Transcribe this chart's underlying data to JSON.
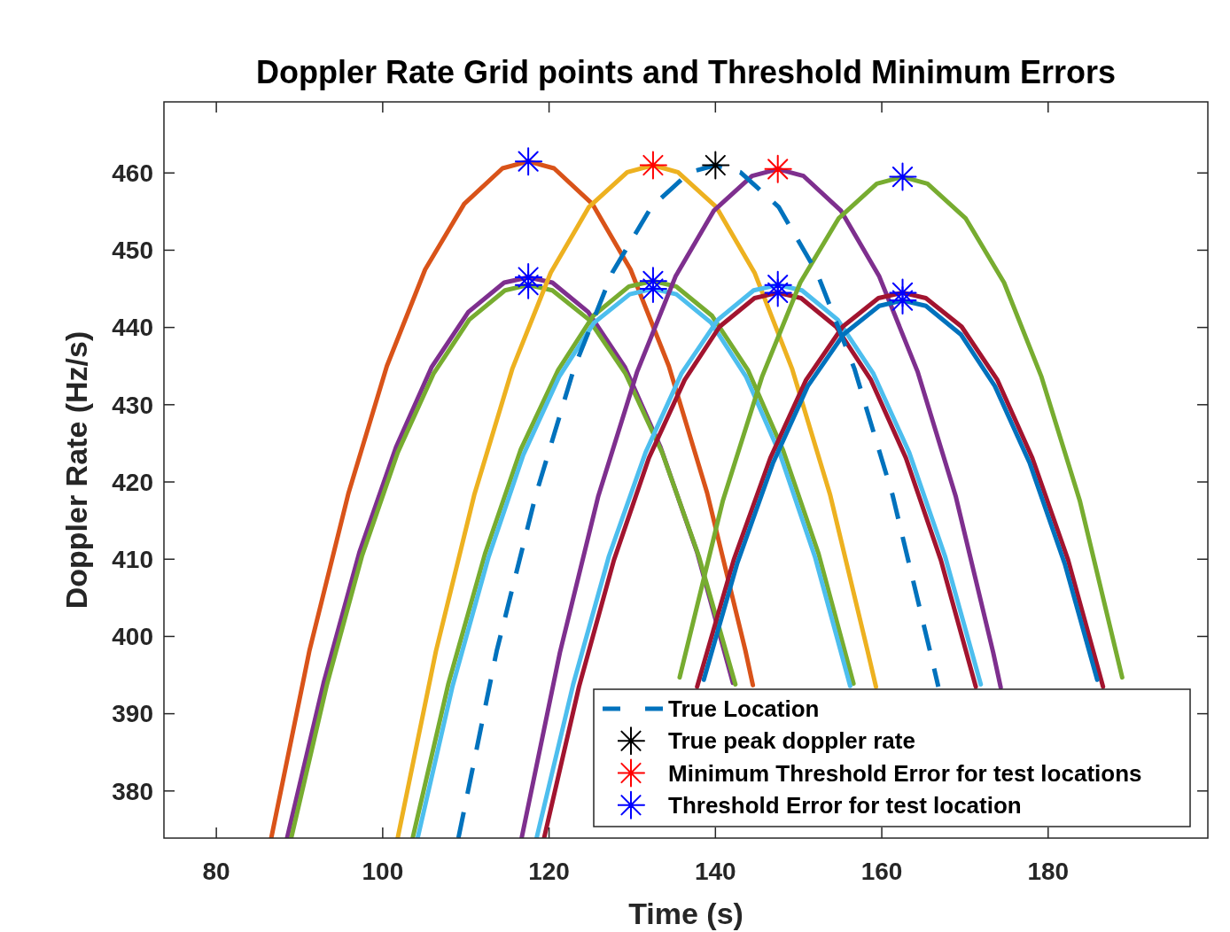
{
  "chart_data": {
    "type": "line",
    "title": "Doppler Rate Grid points and Threshold Minimum Errors",
    "xlabel": "Time (s)",
    "ylabel": "Doppler Rate (Hz/s)",
    "xlim": [
      73.7,
      199.2
    ],
    "ylim": [
      373.9,
      469.2
    ],
    "xticks": [
      80,
      100,
      120,
      140,
      160,
      180
    ],
    "yticks": [
      380,
      390,
      400,
      410,
      420,
      430,
      440,
      450,
      460
    ],
    "grid": false,
    "legend": "bottom right",
    "marker": "none",
    "line_style": "solid",
    "series": [
      {
        "color": "#d95319",
        "x": [
          86.6,
          91.2,
          95.9,
          100.5,
          105.1,
          109.8,
          114.4,
          117.5,
          120.6,
          125.2,
          129.8,
          134.4,
          139.0,
          143.6,
          144.5
        ],
        "values": [
          373.9,
          398.2,
          418.6,
          435.0,
          447.5,
          456.0,
          460.6,
          461.5,
          460.6,
          456.0,
          447.5,
          435.0,
          418.6,
          398.2,
          393.7
        ]
      },
      {
        "color": "#7e2f8e",
        "x": [
          88.5,
          92.9,
          97.2,
          101.6,
          105.9,
          110.3,
          114.6,
          117.5,
          120.4,
          124.7,
          129.1,
          133.4,
          137.8,
          142.1
        ],
        "values": [
          373.9,
          394.0,
          410.9,
          424.5,
          434.9,
          442.0,
          445.8,
          446.5,
          445.8,
          442.0,
          434.9,
          424.5,
          410.9,
          394.0
        ]
      },
      {
        "color": "#77ac30",
        "x": [
          89.0,
          93.3,
          97.5,
          101.8,
          106.1,
          110.4,
          114.7,
          117.5,
          120.4,
          124.8,
          129.2,
          133.6,
          138.0,
          142.4
        ],
        "values": [
          373.9,
          393.8,
          410.4,
          423.8,
          434.0,
          441.0,
          444.8,
          445.5,
          444.8,
          441.0,
          434.0,
          423.8,
          410.4,
          393.8
        ]
      },
      {
        "color": "#edb120",
        "x": [
          101.8,
          106.4,
          111.0,
          115.6,
          120.2,
          124.8,
          129.4,
          132.5,
          135.5,
          140.1,
          144.7,
          149.2,
          153.8,
          158.3,
          159.3
        ],
        "values": [
          373.9,
          398.1,
          418.3,
          434.7,
          447.1,
          455.6,
          460.1,
          461,
          460.1,
          455.6,
          447.1,
          434.7,
          418.3,
          398.1,
          393.5
        ]
      },
      {
        "color": "#77ac30",
        "x": [
          103.6,
          107.9,
          112.3,
          116.6,
          121.1,
          125.3,
          129.6,
          132.5,
          135.3,
          139.6,
          143.9,
          148.1,
          152.4,
          156.6
        ],
        "values": [
          373.9,
          393.9,
          410.7,
          424.2,
          434.5,
          441.5,
          445.3,
          446,
          445.3,
          441.5,
          434.5,
          424.2,
          410.7,
          393.9
        ]
      },
      {
        "color": "#4dbeee",
        "x": [
          104.2,
          108.4,
          112.7,
          116.9,
          121.2,
          125.4,
          129.7,
          132.5,
          135.3,
          139.5,
          143.7,
          147.8,
          152.0,
          156.2
        ],
        "values": [
          373.9,
          393.6,
          410.2,
          423.5,
          433.6,
          440.6,
          444.3,
          445,
          444.3,
          440.6,
          433.6,
          423.5,
          410.2,
          393.6
        ]
      },
      {
        "color": "#7e2f8e",
        "x": [
          116.7,
          121.3,
          125.9,
          130.6,
          135.2,
          139.8,
          144.4,
          147.5,
          150.6,
          155.1,
          159.7,
          164.3,
          168.9,
          173.4,
          174.3
        ],
        "values": [
          373.9,
          397.9,
          418.1,
          434.3,
          446.6,
          455.1,
          459.6,
          460.5,
          459.6,
          455.1,
          446.6,
          434.3,
          418.1,
          397.9,
          393.4
        ]
      },
      {
        "color": "#4dbeee",
        "x": [
          118.5,
          122.9,
          127.2,
          131.6,
          135.9,
          140.3,
          144.6,
          147.5,
          150.4,
          154.7,
          159.0,
          163.3,
          167.6,
          171.9
        ],
        "values": [
          373.9,
          393.8,
          410.4,
          423.8,
          434.0,
          441.0,
          444.8,
          445.5,
          444.8,
          441.0,
          434.0,
          423.8,
          410.4,
          393.8
        ]
      },
      {
        "color": "#a2142f",
        "x": [
          119.4,
          123.6,
          127.8,
          132.0,
          136.3,
          140.5,
          144.7,
          147.5,
          150.3,
          154.5,
          158.7,
          162.9,
          167.1,
          171.3
        ],
        "values": [
          373.9,
          393.5,
          409.9,
          423.1,
          433.2,
          440.1,
          443.8,
          444.5,
          443.8,
          440.1,
          433.2,
          423.1,
          409.9,
          393.5
        ]
      },
      {
        "color": "#77ac30",
        "x": [
          135.7,
          140.9,
          145.6,
          150.2,
          154.8,
          159.4,
          162.5,
          165.5,
          170.1,
          174.7,
          179.2,
          183.8,
          188.9
        ],
        "values": [
          394.7,
          417.6,
          433.6,
          445.8,
          454.1,
          458.6,
          459.5,
          458.6,
          454.1,
          445.8,
          433.6,
          417.6,
          394.7
        ]
      },
      {
        "color": "#a2142f",
        "x": [
          137.8,
          142.2,
          146.6,
          150.9,
          155.3,
          159.6,
          162.5,
          165.3,
          169.6,
          173.9,
          178.1,
          182.4,
          186.6
        ],
        "values": [
          393.5,
          409.9,
          423.1,
          433.2,
          440.1,
          443.8,
          444.5,
          443.8,
          440.1,
          433.2,
          423.1,
          409.9,
          393.5
        ]
      },
      {
        "color": "#0072bd",
        "x": [
          138.6,
          142.6,
          146.9,
          151.1,
          155.4,
          159.7,
          162.5,
          165.3,
          169.5,
          173.6,
          177.8,
          182.0,
          185.9
        ],
        "values": [
          394.4,
          409.4,
          422.4,
          432.4,
          439.1,
          442.8,
          443.5,
          442.8,
          439.1,
          432.4,
          422.4,
          409.4,
          394.4
        ]
      },
      {
        "name": "True Location",
        "color": "#0072bd",
        "line_style": "dashed",
        "x": [
          109.1,
          113.7,
          118.4,
          123.0,
          127.6,
          132.3,
          136.9,
          140,
          143.0,
          147.6,
          152.2,
          156.7,
          161.3,
          165.8,
          166.8
        ],
        "values": [
          373.9,
          398.1,
          418.3,
          434.7,
          447.1,
          455.6,
          460.1,
          461,
          460.1,
          455.6,
          447.1,
          434.7,
          418.3,
          398.1,
          393.5
        ]
      },
      {
        "name": "True peak doppler rate",
        "type": "scatter",
        "marker": "cross",
        "color": "#000000",
        "x": [
          140
        ],
        "values": [
          461
        ]
      },
      {
        "name": "Minimum Threshold Error for test locations",
        "type": "scatter",
        "marker": "cross",
        "color": "#ff0000",
        "x": [
          132.5,
          147.5
        ],
        "values": [
          461,
          460.5
        ]
      },
      {
        "name": "Threshold Error for test location",
        "type": "scatter",
        "marker": "cross",
        "color": "#0000ff",
        "x": [
          117.5,
          117.5,
          117.5,
          132.5,
          132.5,
          147.5,
          147.5,
          162.5,
          162.5,
          162.5
        ],
        "values": [
          461.5,
          446.5,
          445.5,
          446,
          445,
          445.5,
          444.5,
          459.5,
          444.5,
          443.5
        ]
      }
    ]
  }
}
